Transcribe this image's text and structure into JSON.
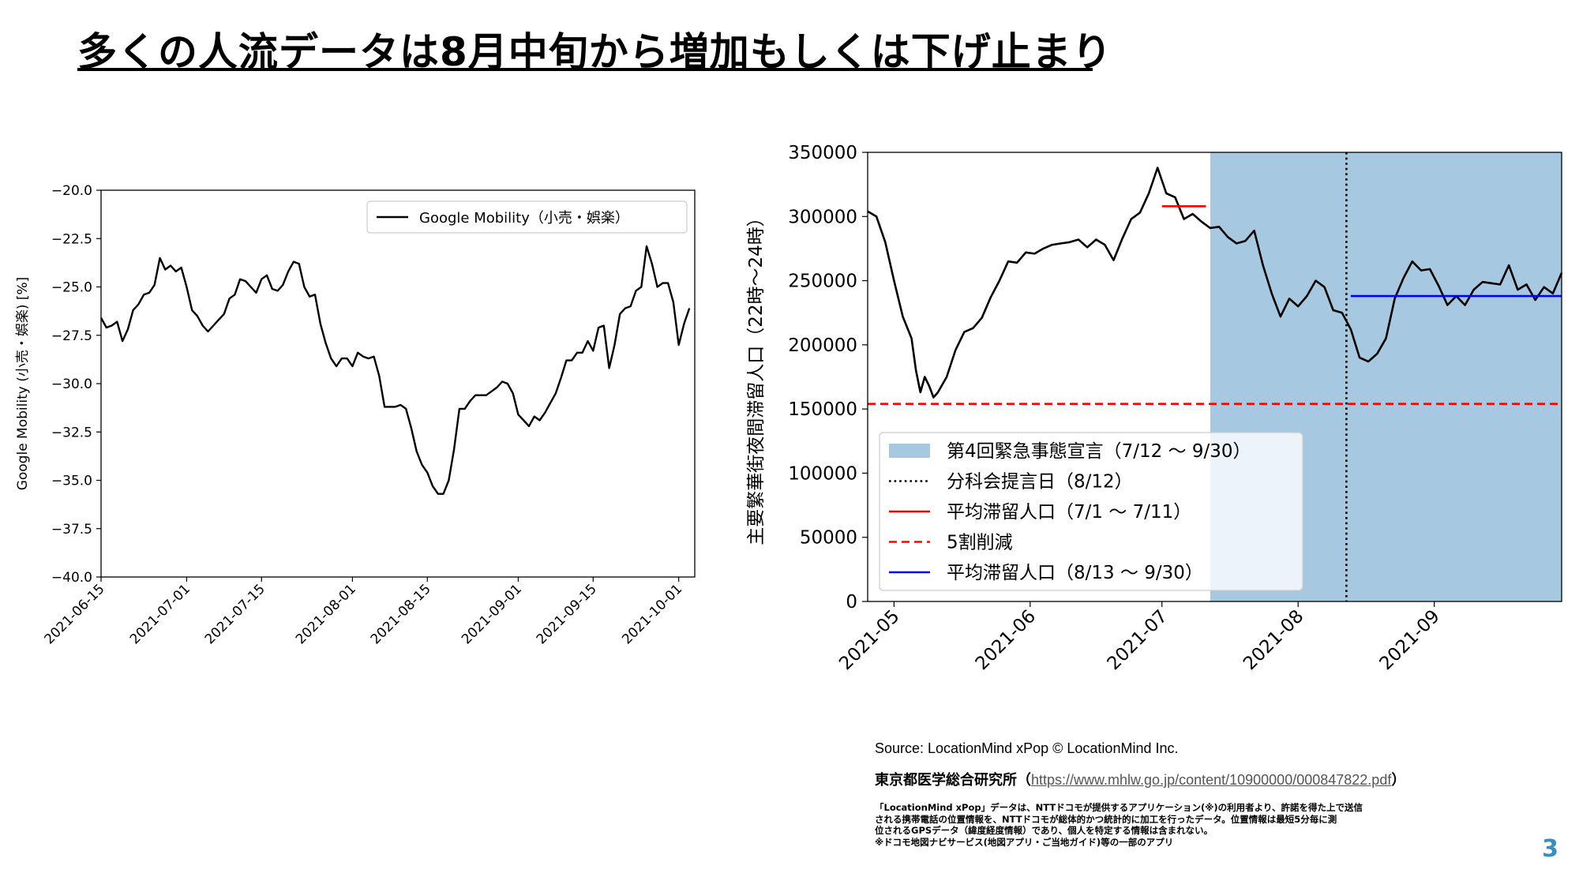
{
  "slide": {
    "title": "多くの人流データは8月中旬から増加もしくは下げ止まり",
    "page_number": "3",
    "source_line": "Source: LocationMind xPop © LocationMind Inc.",
    "institute_prefix": "東京都医学総合研究所（",
    "institute_link": "https://www.mhlw.go.jp/content/10900000/000847822.pdf",
    "institute_suffix": "）",
    "notes": [
      "「LocationMind xPop」データは、NTTドコモが提供するアプリケーション(※)の利用者より、許諾を得た上で送信",
      "される携帯電話の位置情報を、NTTドコモが総体的かつ統計的に加工を行ったデータ。位置情報は最短5分毎に測",
      "位されるGPSデータ（緯度経度情報）であり、個人を特定する情報は含まれない。",
      "※ドコモ地図ナビサービス(地図アプリ・ご当地ガイド)等の一部のアプリ"
    ]
  },
  "chart_data": [
    {
      "type": "line",
      "ylabel": "Google Mobility (小売・娯楽) [%]",
      "xlabel": "",
      "ylim": [
        -40.0,
        -20.0
      ],
      "yticks": [
        -20.0,
        -22.5,
        -25.0,
        -27.5,
        -30.0,
        -32.5,
        -35.0,
        -37.5,
        -40.0
      ],
      "ytick_labels": [
        "−20.0",
        "−22.5",
        "−25.0",
        "−27.5",
        "−30.0",
        "−32.5",
        "−35.0",
        "−37.5",
        "−40.0"
      ],
      "xlim": [
        "2021-06-15",
        "2021-10-04"
      ],
      "xticks": [
        "2021-06-15",
        "2021-07-01",
        "2021-07-15",
        "2021-08-01",
        "2021-08-15",
        "2021-09-01",
        "2021-09-15",
        "2021-10-01"
      ],
      "legend": {
        "placement": "top-right",
        "entries": [
          "Google Mobility（小売・娯楽）"
        ]
      },
      "grid": false,
      "colors": {
        "line": "#000000"
      },
      "series": [
        {
          "name": "Google Mobility（小売・娯楽）",
          "x": [
            "2021-06-15",
            "2021-06-16",
            "2021-06-17",
            "2021-06-18",
            "2021-06-19",
            "2021-06-20",
            "2021-06-21",
            "2021-06-22",
            "2021-06-23",
            "2021-06-24",
            "2021-06-25",
            "2021-06-26",
            "2021-06-27",
            "2021-06-28",
            "2021-06-29",
            "2021-06-30",
            "2021-07-01",
            "2021-07-02",
            "2021-07-03",
            "2021-07-04",
            "2021-07-05",
            "2021-07-06",
            "2021-07-07",
            "2021-07-08",
            "2021-07-09",
            "2021-07-10",
            "2021-07-11",
            "2021-07-12",
            "2021-07-13",
            "2021-07-14",
            "2021-07-15",
            "2021-07-16",
            "2021-07-17",
            "2021-07-18",
            "2021-07-19",
            "2021-07-20",
            "2021-07-21",
            "2021-07-22",
            "2021-07-23",
            "2021-07-24",
            "2021-07-25",
            "2021-07-26",
            "2021-07-27",
            "2021-07-28",
            "2021-07-29",
            "2021-07-30",
            "2021-07-31",
            "2021-08-01",
            "2021-08-02",
            "2021-08-03",
            "2021-08-04",
            "2021-08-05",
            "2021-08-06",
            "2021-08-07",
            "2021-08-08",
            "2021-08-09",
            "2021-08-10",
            "2021-08-11",
            "2021-08-12",
            "2021-08-13",
            "2021-08-14",
            "2021-08-15",
            "2021-08-16",
            "2021-08-17",
            "2021-08-18",
            "2021-08-19",
            "2021-08-20",
            "2021-08-21",
            "2021-08-22",
            "2021-08-23",
            "2021-08-24",
            "2021-08-25",
            "2021-08-26",
            "2021-08-27",
            "2021-08-28",
            "2021-08-29",
            "2021-08-30",
            "2021-08-31",
            "2021-09-01",
            "2021-09-02",
            "2021-09-03",
            "2021-09-04",
            "2021-09-05",
            "2021-09-06",
            "2021-09-07",
            "2021-09-08",
            "2021-09-09",
            "2021-09-10",
            "2021-09-11",
            "2021-09-12",
            "2021-09-13",
            "2021-09-14",
            "2021-09-15",
            "2021-09-16",
            "2021-09-17",
            "2021-09-18",
            "2021-09-19",
            "2021-09-20",
            "2021-09-21",
            "2021-09-22",
            "2021-09-23",
            "2021-09-24",
            "2021-09-25",
            "2021-09-26",
            "2021-09-27",
            "2021-09-28",
            "2021-09-29",
            "2021-09-30",
            "2021-10-01",
            "2021-10-02",
            "2021-10-03"
          ],
          "values": [
            -26.6,
            -27.1,
            -27.0,
            -26.8,
            -27.8,
            -27.2,
            -26.2,
            -25.9,
            -25.4,
            -25.3,
            -24.9,
            -23.5,
            -24.1,
            -23.9,
            -24.2,
            -24.0,
            -25.0,
            -26.2,
            -26.5,
            -27.0,
            -27.3,
            -27.0,
            -26.7,
            -26.4,
            -25.6,
            -25.4,
            -24.6,
            -24.7,
            -25.0,
            -25.3,
            -24.6,
            -24.4,
            -25.1,
            -25.2,
            -24.9,
            -24.2,
            -23.7,
            -23.8,
            -25.0,
            -25.5,
            -25.4,
            -26.9,
            -27.9,
            -28.7,
            -29.1,
            -28.7,
            -28.7,
            -29.1,
            -28.4,
            -28.6,
            -28.7,
            -28.6,
            -29.6,
            -31.2,
            -31.2,
            -31.2,
            -31.1,
            -31.3,
            -32.3,
            -33.5,
            -34.2,
            -34.6,
            -35.3,
            -35.7,
            -35.7,
            -35.0,
            -33.4,
            -31.3,
            -31.3,
            -30.9,
            -30.6,
            -30.6,
            -30.6,
            -30.4,
            -30.2,
            -29.9,
            -30.0,
            -30.5,
            -31.6,
            -31.9,
            -32.2,
            -31.7,
            -31.9,
            -31.5,
            -31.0,
            -30.5,
            -29.7,
            -28.8,
            -28.8,
            -28.4,
            -28.4,
            -27.8,
            -28.3,
            -27.1,
            -27.0,
            -29.2,
            -28.0,
            -26.4,
            -26.1,
            -26.0,
            -25.2,
            -25.0,
            -22.9,
            -23.8,
            -25.0,
            -24.8,
            -24.8,
            -25.8,
            -28.0,
            -26.9,
            -26.1
          ]
        }
      ]
    },
    {
      "type": "line",
      "ylabel": "主要繁華街夜間滞留人口（22時〜24時）",
      "xlabel": "",
      "ylim": [
        0,
        350000
      ],
      "yticks": [
        0,
        50000,
        100000,
        150000,
        200000,
        250000,
        300000,
        350000
      ],
      "ytick_labels": [
        "0",
        "50000",
        "100000",
        "150000",
        "200000",
        "250000",
        "300000",
        "350000"
      ],
      "xlim": [
        "2021-04-25",
        "2021-09-30"
      ],
      "xticks": [
        "2021-05",
        "2021-06",
        "2021-07",
        "2021-08",
        "2021-09"
      ],
      "legend": {
        "placement": "lower-left",
        "entries": [
          "第4回緊急事態宣言（7/12 〜 9/30）",
          "分科会提言日（8/12）",
          "平均滞留人口（7/1 〜 7/11）",
          "5割削減",
          "平均滞留人口（8/13 〜 9/30）"
        ]
      },
      "grid": false,
      "colors": {
        "line": "#000000",
        "shade": "#a6c8e0",
        "avg_before": "#ff0000",
        "half_cut": "#ff0000",
        "avg_after": "#0000ff"
      },
      "emergency_period": {
        "from": "2021-07-12",
        "to": "2021-09-30"
      },
      "advice_date": "2021-08-12",
      "avg_before": {
        "from": "2021-07-01",
        "to": "2021-07-11",
        "value": 308000
      },
      "half_cut_value": 154000,
      "avg_after": {
        "from": "2021-08-13",
        "to": "2021-09-30",
        "value": 238000
      },
      "series": [
        {
          "name": "主要繁華街夜間滞留人口",
          "x": [
            "2021-04-25",
            "2021-04-27",
            "2021-04-29",
            "2021-05-01",
            "2021-05-03",
            "2021-05-05",
            "2021-05-06",
            "2021-05-07",
            "2021-05-08",
            "2021-05-09",
            "2021-05-10",
            "2021-05-11",
            "2021-05-13",
            "2021-05-15",
            "2021-05-17",
            "2021-05-19",
            "2021-05-21",
            "2021-05-23",
            "2021-05-25",
            "2021-05-27",
            "2021-05-29",
            "2021-05-31",
            "2021-06-02",
            "2021-06-04",
            "2021-06-06",
            "2021-06-08",
            "2021-06-10",
            "2021-06-12",
            "2021-06-14",
            "2021-06-16",
            "2021-06-18",
            "2021-06-20",
            "2021-06-22",
            "2021-06-24",
            "2021-06-26",
            "2021-06-28",
            "2021-06-30",
            "2021-07-02",
            "2021-07-04",
            "2021-07-06",
            "2021-07-08",
            "2021-07-10",
            "2021-07-12",
            "2021-07-14",
            "2021-07-16",
            "2021-07-18",
            "2021-07-20",
            "2021-07-22",
            "2021-07-24",
            "2021-07-26",
            "2021-07-28",
            "2021-07-30",
            "2021-08-01",
            "2021-08-03",
            "2021-08-05",
            "2021-08-07",
            "2021-08-09",
            "2021-08-11",
            "2021-08-13",
            "2021-08-15",
            "2021-08-17",
            "2021-08-19",
            "2021-08-21",
            "2021-08-23",
            "2021-08-25",
            "2021-08-27",
            "2021-08-29",
            "2021-08-31",
            "2021-09-02",
            "2021-09-04",
            "2021-09-06",
            "2021-09-08",
            "2021-09-10",
            "2021-09-12",
            "2021-09-14",
            "2021-09-16",
            "2021-09-18",
            "2021-09-20",
            "2021-09-22",
            "2021-09-24",
            "2021-09-26",
            "2021-09-28",
            "2021-09-30"
          ],
          "values": [
            304000,
            300000,
            280000,
            250000,
            222000,
            205000,
            180000,
            163000,
            175000,
            168000,
            159000,
            163000,
            175000,
            196000,
            210000,
            213000,
            221000,
            237000,
            250000,
            265000,
            264000,
            272000,
            271000,
            275000,
            278000,
            279000,
            280000,
            282000,
            276000,
            282000,
            278000,
            266000,
            283000,
            298000,
            303000,
            318000,
            338000,
            318000,
            315000,
            298000,
            302000,
            296000,
            291000,
            292000,
            284000,
            279000,
            281000,
            289000,
            262000,
            240000,
            222000,
            236000,
            230000,
            238000,
            250000,
            245000,
            227000,
            225000,
            212000,
            190000,
            187000,
            193000,
            205000,
            236000,
            252000,
            265000,
            258000,
            259000,
            246000,
            231000,
            238000,
            231000,
            243000,
            249000,
            248000,
            247000,
            262000,
            243000,
            247000,
            235000,
            245000,
            240000,
            256000
          ]
        }
      ]
    }
  ]
}
